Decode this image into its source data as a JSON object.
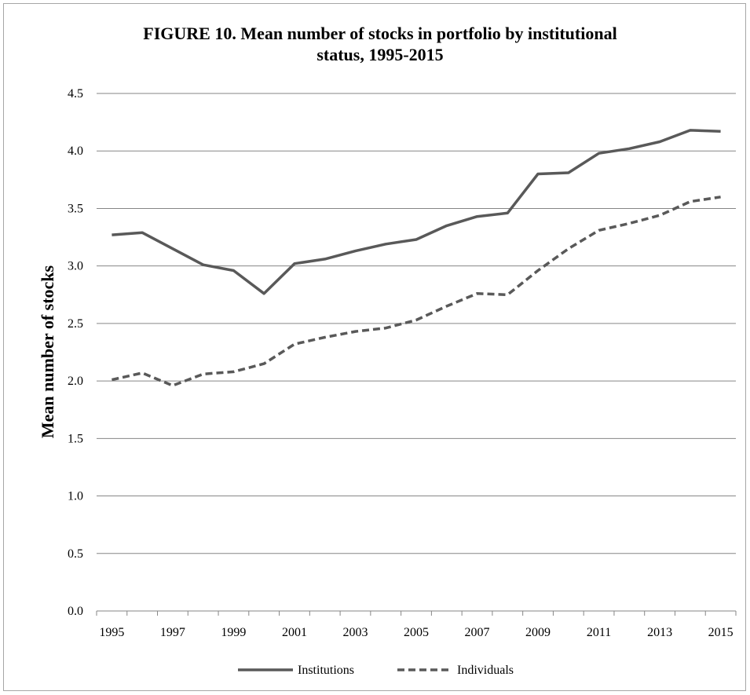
{
  "chart_data": {
    "type": "line",
    "title_lines": [
      "FIGURE 10. Mean number of stocks in portfolio by institutional",
      "status, 1995-2015"
    ],
    "ylabel": "Mean number of stocks",
    "xlabel": "",
    "ylim": [
      0,
      4.5
    ],
    "yticks": [
      "0.0",
      "0.5",
      "1.0",
      "1.5",
      "2.0",
      "2.5",
      "3.0",
      "3.5",
      "4.0",
      "4.5"
    ],
    "x": [
      1995,
      1996,
      1997,
      1998,
      1999,
      2000,
      2001,
      2002,
      2003,
      2004,
      2005,
      2006,
      2007,
      2008,
      2009,
      2010,
      2011,
      2012,
      2013,
      2014,
      2015
    ],
    "xtick_labels": [
      "1995",
      "1997",
      "1999",
      "2001",
      "2003",
      "2005",
      "2007",
      "2009",
      "2011",
      "2013",
      "2015"
    ],
    "grid": true,
    "legend_position": "bottom",
    "series": [
      {
        "name": "Institutions",
        "style": "solid",
        "color": "#595959",
        "values": [
          3.27,
          3.29,
          3.15,
          3.01,
          2.96,
          2.76,
          3.02,
          3.06,
          3.13,
          3.19,
          3.23,
          3.35,
          3.43,
          3.46,
          3.8,
          3.81,
          3.98,
          4.02,
          4.08,
          4.18,
          4.17
        ]
      },
      {
        "name": "Individuals",
        "style": "dashed",
        "color": "#595959",
        "values": [
          2.01,
          2.07,
          1.96,
          2.06,
          2.08,
          2.15,
          2.32,
          2.38,
          2.43,
          2.46,
          2.53,
          2.65,
          2.76,
          2.75,
          2.96,
          3.15,
          3.31,
          3.37,
          3.44,
          3.56,
          3.6
        ]
      }
    ]
  },
  "colors": {
    "gridline": "#868686",
    "axis": "#868686",
    "frame": "#a6a6a6"
  }
}
